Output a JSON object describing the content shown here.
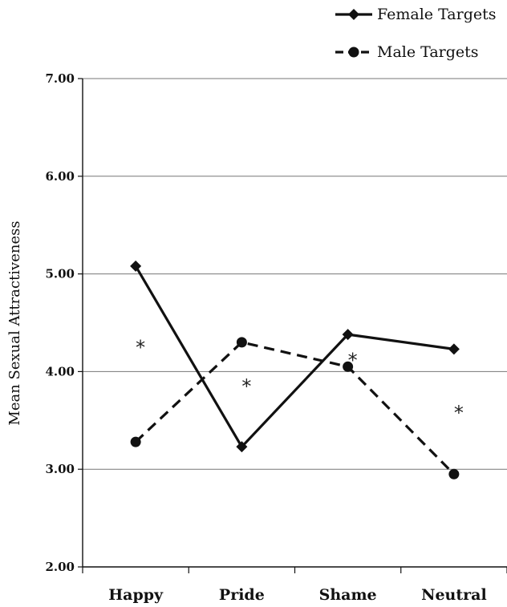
{
  "chart_data": {
    "type": "line",
    "title": "",
    "xlabel": "",
    "ylabel": "Mean Sexual Attractiveness",
    "categories": [
      "Happy",
      "Pride",
      "Shame",
      "Neutral"
    ],
    "ylim": [
      2.0,
      7.0
    ],
    "yticks": [
      "2.00",
      "3.00",
      "4.00",
      "5.00",
      "6.00",
      "7.00"
    ],
    "grid": "horizontal",
    "legend_position": "top-right",
    "series": [
      {
        "name": "Female Targets",
        "style": "solid",
        "marker": "diamond",
        "values": [
          5.08,
          3.23,
          4.38,
          4.23
        ]
      },
      {
        "name": "Male Targets",
        "style": "dashed",
        "marker": "circle",
        "values": [
          3.28,
          4.3,
          4.05,
          2.95
        ]
      }
    ],
    "annotations": [
      {
        "text": "*",
        "category": "Happy",
        "y": 4.32
      },
      {
        "text": "*",
        "category": "Pride",
        "y": 3.92
      },
      {
        "text": "*",
        "category": "Shame",
        "y": 4.19
      },
      {
        "text": "*",
        "category": "Neutral",
        "y": 3.65
      }
    ],
    "colors": {
      "line": "#111111",
      "grid": "#777777",
      "axis": "#111111"
    }
  }
}
